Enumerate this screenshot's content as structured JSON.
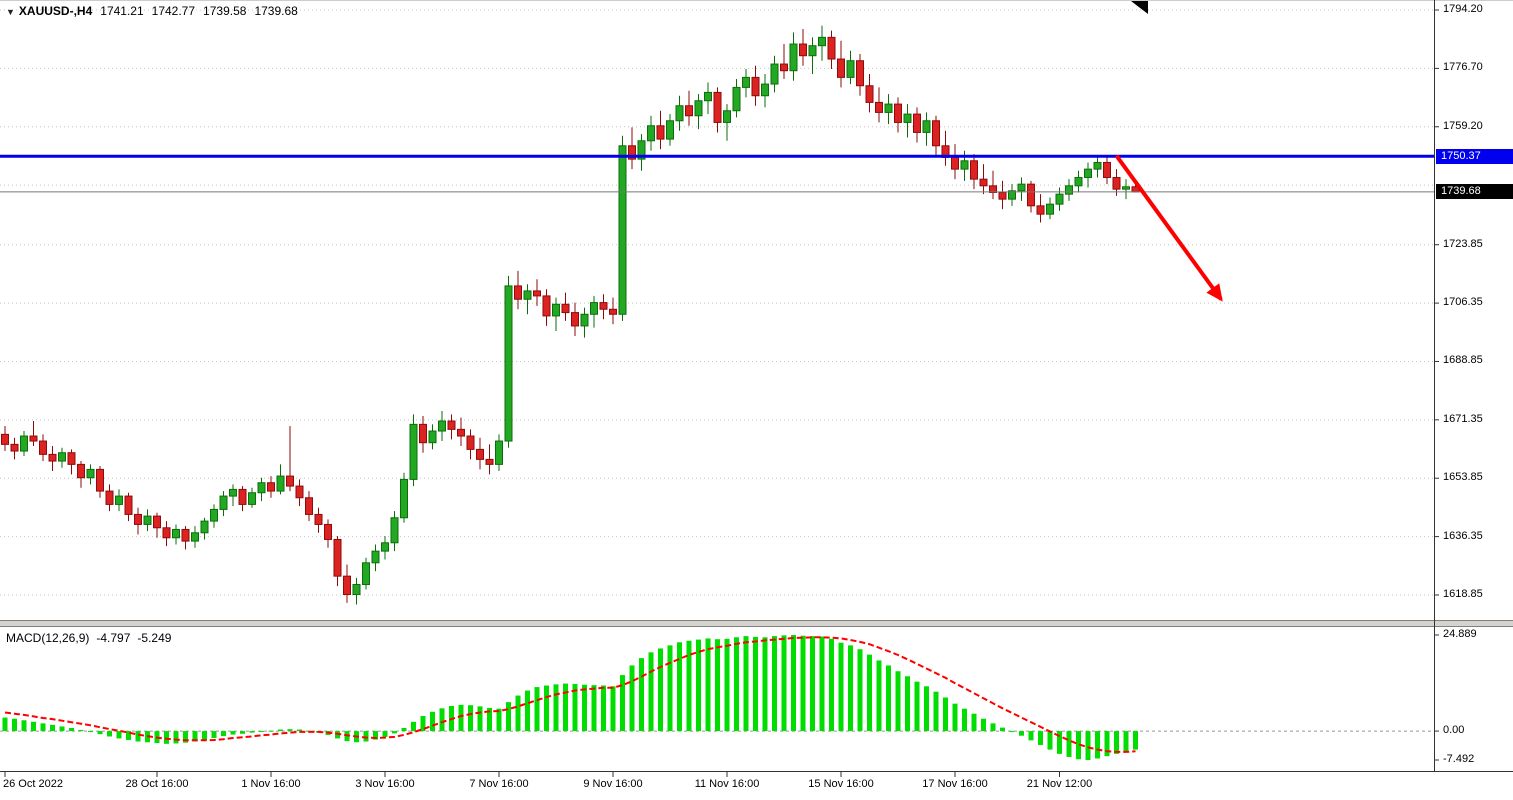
{
  "info": {
    "collapse_icon": "▼",
    "symbol": "XAUUSD-,H4",
    "open": "1741.21",
    "high": "1742.77",
    "low": "1739.58",
    "close": "1739.68"
  },
  "macd_info": {
    "name": "MACD(12,26,9)",
    "main": "-4.797",
    "signal": "-5.249"
  },
  "lines": {
    "resistance": {
      "label": "1750.37",
      "value": 1750.37,
      "color": "#0000ee"
    },
    "bid": {
      "label": "1739.68",
      "value": 1739.68,
      "color": "#000000"
    }
  },
  "price_axis_ticks": [
    {
      "label": "1794.20",
      "value": 1794.2
    },
    {
      "label": "1776.70",
      "value": 1776.7
    },
    {
      "label": "1759.20",
      "value": 1759.2
    },
    {
      "label": "1723.85",
      "value": 1723.85
    },
    {
      "label": "1706.35",
      "value": 1706.35
    },
    {
      "label": "1688.85",
      "value": 1688.85
    },
    {
      "label": "1671.35",
      "value": 1671.35
    },
    {
      "label": "1653.85",
      "value": 1653.85
    },
    {
      "label": "1636.35",
      "value": 1636.35
    },
    {
      "label": "1618.85",
      "value": 1618.85
    }
  ],
  "macd_axis_ticks": [
    {
      "label": "24.889",
      "value": 24.889
    },
    {
      "label": "0.00",
      "value": 0
    },
    {
      "label": "-7.492",
      "value": -7.492
    }
  ],
  "time_axis_ticks": [
    {
      "label": "26 Oct 2022",
      "bar": 0
    },
    {
      "label": "28 Oct 16:00",
      "bar": 16
    },
    {
      "label": "1 Nov 16:00",
      "bar": 28
    },
    {
      "label": "3 Nov 16:00",
      "bar": 40
    },
    {
      "label": "7 Nov 16:00",
      "bar": 52
    },
    {
      "label": "9 Nov 16:00",
      "bar": 64
    },
    {
      "label": "11 Nov 16:00",
      "bar": 76
    },
    {
      "label": "15 Nov 16:00",
      "bar": 88
    },
    {
      "label": "17 Nov 16:00",
      "bar": 100
    },
    {
      "label": "21 Nov 12:00",
      "bar": 111
    }
  ],
  "colors": {
    "bull_fill": "#22a822",
    "bull_stroke": "#0b6e0b",
    "bear_fill": "#dd2222",
    "bear_stroke": "#8e0b0b",
    "macd_hist": "#00dd00",
    "macd_signal": "#ff0000",
    "arrow": "#ff0000",
    "grid": "#c4c4c4",
    "border": "#333333"
  },
  "chart_data": [
    {
      "type": "candlestick",
      "title": "XAUUSD-,H4",
      "ylim": [
        1618.85,
        1794.2
      ],
      "grid_values": [
        1794.2,
        1776.7,
        1759.2,
        1741.7,
        1723.85,
        1706.35,
        1688.85,
        1671.35,
        1653.85,
        1636.35,
        1618.85
      ],
      "annotations": {
        "horizontal_line": 1750.37,
        "last_price": 1739.68,
        "arrow": {
          "from": {
            "bar": 117,
            "price": 1750.5
          },
          "to": {
            "bar": 128,
            "price": 1707.5
          }
        }
      },
      "ohlc": [
        [
          1667,
          1669.5,
          1662,
          1664
        ],
        [
          1664,
          1666,
          1659.5,
          1662
        ],
        [
          1662,
          1668,
          1660.5,
          1666.5
        ],
        [
          1666.5,
          1671,
          1663.5,
          1665
        ],
        [
          1665,
          1667,
          1659,
          1661
        ],
        [
          1661,
          1663.5,
          1656,
          1659
        ],
        [
          1659,
          1663,
          1657,
          1661.5
        ],
        [
          1661.5,
          1662.5,
          1655,
          1658
        ],
        [
          1658,
          1659,
          1651,
          1654
        ],
        [
          1654,
          1658,
          1652,
          1656.5
        ],
        [
          1656.5,
          1657.5,
          1648,
          1650
        ],
        [
          1650,
          1652,
          1644,
          1646
        ],
        [
          1646,
          1650.5,
          1644,
          1648.5
        ],
        [
          1648.5,
          1649.5,
          1641,
          1643
        ],
        [
          1643,
          1645,
          1637,
          1640
        ],
        [
          1640,
          1644.5,
          1638,
          1642.5
        ],
        [
          1642.5,
          1643.5,
          1636,
          1639
        ],
        [
          1639,
          1641,
          1633.5,
          1636
        ],
        [
          1636,
          1640,
          1634,
          1638.5
        ],
        [
          1638.5,
          1639.5,
          1632.5,
          1635
        ],
        [
          1635,
          1639.5,
          1633,
          1637.5
        ],
        [
          1637.5,
          1642,
          1635.5,
          1641
        ],
        [
          1641,
          1646,
          1639,
          1644.5
        ],
        [
          1644.5,
          1650,
          1642.5,
          1648.5
        ],
        [
          1648.5,
          1652,
          1645.5,
          1650.5
        ],
        [
          1650.5,
          1651.5,
          1644,
          1646
        ],
        [
          1646,
          1651,
          1645,
          1649.5
        ],
        [
          1649.5,
          1654,
          1647,
          1652.5
        ],
        [
          1652.5,
          1654.5,
          1648,
          1650
        ],
        [
          1650,
          1658,
          1649,
          1654.5
        ],
        [
          1654.5,
          1669.5,
          1650,
          1651.5
        ],
        [
          1651.5,
          1653.5,
          1645.5,
          1648
        ],
        [
          1648,
          1650,
          1641,
          1643
        ],
        [
          1643,
          1645,
          1637.5,
          1640
        ],
        [
          1640,
          1641.5,
          1633,
          1635.5
        ],
        [
          1635.5,
          1636.5,
          1621.5,
          1624.5
        ],
        [
          1624.5,
          1628,
          1616.5,
          1619
        ],
        [
          1619,
          1624,
          1616,
          1622
        ],
        [
          1622,
          1630,
          1620.5,
          1628.5
        ],
        [
          1628.5,
          1634,
          1626,
          1632
        ],
        [
          1632,
          1636.5,
          1629.5,
          1634.5
        ],
        [
          1634.5,
          1644,
          1632,
          1642
        ],
        [
          1642,
          1655.5,
          1640.5,
          1653.5
        ],
        [
          1653.5,
          1673,
          1651.5,
          1670
        ],
        [
          1670,
          1672.5,
          1661.5,
          1664.5
        ],
        [
          1664.5,
          1670,
          1662.5,
          1668
        ],
        [
          1668,
          1674,
          1665,
          1671
        ],
        [
          1671,
          1673,
          1665.5,
          1668.5
        ],
        [
          1668.5,
          1672,
          1663.5,
          1666.5
        ],
        [
          1666.5,
          1668.5,
          1659.5,
          1662.5
        ],
        [
          1662.5,
          1666,
          1656.5,
          1659.5
        ],
        [
          1659.5,
          1664,
          1655,
          1658
        ],
        [
          1658,
          1667,
          1656,
          1665
        ],
        [
          1665,
          1714.5,
          1663,
          1711.5
        ],
        [
          1711.5,
          1716,
          1704.5,
          1707.5
        ],
        [
          1707.5,
          1712,
          1703,
          1710
        ],
        [
          1710,
          1713.5,
          1705.5,
          1708.5
        ],
        [
          1708.5,
          1710.5,
          1699.5,
          1702.5
        ],
        [
          1702.5,
          1708,
          1698,
          1706
        ],
        [
          1706,
          1709.5,
          1701,
          1703.5
        ],
        [
          1703.5,
          1706.5,
          1696.5,
          1699.5
        ],
        [
          1699.5,
          1705,
          1696,
          1703
        ],
        [
          1703,
          1708.5,
          1699,
          1706.5
        ],
        [
          1706.5,
          1709,
          1701.5,
          1704.5
        ],
        [
          1704.5,
          1708,
          1700,
          1703
        ],
        [
          1703,
          1756.5,
          1701,
          1753.5
        ],
        [
          1753.5,
          1759,
          1746.5,
          1749.5
        ],
        [
          1749.5,
          1757,
          1746,
          1755
        ],
        [
          1755,
          1762.5,
          1752,
          1759.5
        ],
        [
          1759.5,
          1764,
          1752.5,
          1755.5
        ],
        [
          1755.5,
          1763,
          1753.5,
          1761
        ],
        [
          1761,
          1768.5,
          1758,
          1765.5
        ],
        [
          1765.5,
          1770,
          1759.5,
          1762.5
        ],
        [
          1762.5,
          1769,
          1758.5,
          1767
        ],
        [
          1767,
          1772.5,
          1763,
          1769.5
        ],
        [
          1769.5,
          1771,
          1757.5,
          1760.5
        ],
        [
          1760.5,
          1766,
          1755,
          1764
        ],
        [
          1764,
          1773.5,
          1762,
          1771
        ],
        [
          1771,
          1776.5,
          1768,
          1774
        ],
        [
          1774,
          1777.5,
          1765.5,
          1768.5
        ],
        [
          1768.5,
          1775,
          1765,
          1772
        ],
        [
          1772,
          1780.5,
          1769.5,
          1778
        ],
        [
          1778,
          1784,
          1773.5,
          1776
        ],
        [
          1776,
          1787.5,
          1773,
          1784
        ],
        [
          1784,
          1788.5,
          1777.5,
          1780.5
        ],
        [
          1780.5,
          1786,
          1775,
          1783.5
        ],
        [
          1783.5,
          1789.5,
          1779,
          1786
        ],
        [
          1786,
          1788,
          1776.5,
          1779.5
        ],
        [
          1779.5,
          1785,
          1771,
          1774
        ],
        [
          1774,
          1782,
          1772,
          1779
        ],
        [
          1779,
          1781,
          1768.5,
          1771.5
        ],
        [
          1771.5,
          1775,
          1763.5,
          1766.5
        ],
        [
          1766.5,
          1771,
          1760.5,
          1763.5
        ],
        [
          1763.5,
          1769,
          1760,
          1766
        ],
        [
          1766,
          1768,
          1757.5,
          1760.5
        ],
        [
          1760.5,
          1766,
          1756,
          1763
        ],
        [
          1763,
          1765,
          1754.5,
          1757.5
        ],
        [
          1757.5,
          1763.5,
          1753.5,
          1761
        ],
        [
          1761,
          1762.5,
          1750.5,
          1753.5
        ],
        [
          1753.5,
          1758,
          1747.5,
          1750
        ],
        [
          1750,
          1754,
          1743.5,
          1746.5
        ],
        [
          1746.5,
          1752,
          1743,
          1749
        ],
        [
          1749,
          1751,
          1740.5,
          1743.5
        ],
        [
          1743.5,
          1748,
          1739,
          1741.5
        ],
        [
          1741.5,
          1746,
          1737.5,
          1739.5
        ],
        [
          1739.5,
          1743,
          1734.5,
          1737.5
        ],
        [
          1737.5,
          1742,
          1735.5,
          1740
        ],
        [
          1740,
          1744,
          1737,
          1742
        ],
        [
          1742,
          1743,
          1733.5,
          1735.5
        ],
        [
          1735.5,
          1739,
          1730.5,
          1733
        ],
        [
          1733,
          1738,
          1731.5,
          1736
        ],
        [
          1736,
          1741,
          1734,
          1739
        ],
        [
          1739,
          1743.5,
          1737,
          1741.5
        ],
        [
          1741.5,
          1746,
          1739.5,
          1744
        ],
        [
          1744,
          1748.5,
          1741,
          1746.5
        ],
        [
          1746.5,
          1750.5,
          1744,
          1748.5
        ],
        [
          1748.5,
          1750,
          1742,
          1744
        ],
        [
          1744,
          1746.5,
          1738.5,
          1740.5
        ],
        [
          1740.5,
          1743.5,
          1737.5,
          1741.21
        ],
        [
          1741.21,
          1742.77,
          1739.58,
          1739.68
        ]
      ]
    },
    {
      "type": "bar",
      "name": "MACD(12,26,9)",
      "ylim": [
        -7.492,
        24.889
      ],
      "histogram": [
        3.5,
        3.2,
        2.8,
        2.4,
        2.0,
        1.6,
        1.2,
        0.8,
        0.3,
        -0.2,
        -0.8,
        -1.4,
        -1.9,
        -2.3,
        -2.7,
        -2.9,
        -3.1,
        -3.3,
        -3.2,
        -3.0,
        -2.7,
        -2.3,
        -1.8,
        -1.3,
        -0.9,
        -0.7,
        -0.4,
        -0.1,
        0.1,
        0.4,
        0.5,
        0.4,
        0.1,
        -0.4,
        -1.0,
        -1.9,
        -2.6,
        -2.9,
        -2.7,
        -2.2,
        -1.5,
        -0.6,
        0.8,
        2.4,
        3.9,
        5.0,
        5.9,
        6.5,
        6.8,
        6.7,
        6.4,
        6.0,
        5.8,
        7.5,
        9.2,
        10.5,
        11.4,
        11.8,
        12.1,
        12.3,
        12.2,
        12.0,
        11.9,
        11.8,
        11.6,
        14.5,
        17.0,
        18.9,
        20.4,
        21.4,
        22.2,
        23.0,
        23.4,
        23.7,
        24.0,
        23.8,
        23.9,
        24.3,
        24.6,
        24.4,
        24.3,
        24.6,
        24.8,
        24.889,
        24.7,
        24.6,
        24.5,
        23.9,
        22.9,
        22.2,
        21.2,
        19.8,
        18.3,
        17.0,
        15.5,
        14.2,
        12.8,
        11.6,
        10.2,
        8.7,
        7.1,
        5.8,
        4.5,
        3.2,
        2.0,
        0.9,
        -0.2,
        -1.2,
        -2.4,
        -3.6,
        -4.8,
        -5.9,
        -6.7,
        -7.3,
        -7.492,
        -7.1,
        -6.5,
        -5.9,
        -5.3,
        -4.797
      ],
      "signal": [
        4.8,
        4.5,
        4.2,
        3.8,
        3.4,
        3.1,
        2.7,
        2.3,
        1.9,
        1.5,
        1.0,
        0.5,
        0.1,
        -0.4,
        -0.9,
        -1.3,
        -1.7,
        -2.0,
        -2.2,
        -2.4,
        -2.4,
        -2.4,
        -2.3,
        -2.1,
        -1.8,
        -1.6,
        -1.4,
        -1.1,
        -0.9,
        -0.6,
        -0.4,
        -0.2,
        -0.2,
        -0.2,
        -0.4,
        -0.7,
        -1.1,
        -1.4,
        -1.7,
        -1.8,
        -1.7,
        -1.5,
        -1.0,
        -0.3,
        0.5,
        1.4,
        2.3,
        3.1,
        3.9,
        4.4,
        4.8,
        5.1,
        5.2,
        5.7,
        6.4,
        7.2,
        8.0,
        8.8,
        9.5,
        10.0,
        10.5,
        10.8,
        11.0,
        11.2,
        11.2,
        11.9,
        12.9,
        14.1,
        15.4,
        16.6,
        17.7,
        18.7,
        19.7,
        20.5,
        21.2,
        21.7,
        22.1,
        22.6,
        23.0,
        23.2,
        23.5,
        23.7,
        23.9,
        24.1,
        24.2,
        24.3,
        24.3,
        24.2,
        24.0,
        23.6,
        23.1,
        22.5,
        21.6,
        20.7,
        19.7,
        18.6,
        17.4,
        16.2,
        15.0,
        13.8,
        12.4,
        11.1,
        9.8,
        8.5,
        7.2,
        5.9,
        4.7,
        3.5,
        2.3,
        1.1,
        -0.1,
        -1.3,
        -2.4,
        -3.4,
        -4.2,
        -4.8,
        -5.2,
        -5.4,
        -5.4,
        -5.249
      ]
    }
  ]
}
